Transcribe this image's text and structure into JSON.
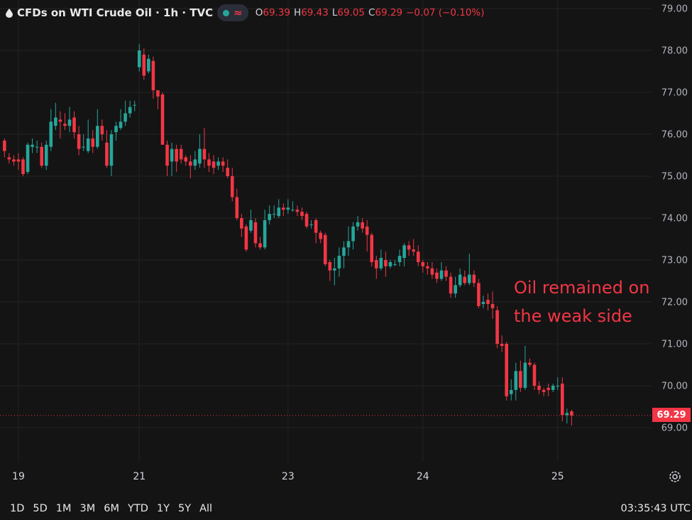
{
  "header": {
    "symbol_title": "CFDs on WTI Crude Oil · 1h · TVC",
    "ohlc": {
      "o_label": "O",
      "o_value": "69.39",
      "h_label": "H",
      "h_value": "69.43",
      "l_label": "L",
      "l_value": "69.05",
      "c_label": "C",
      "c_value": "69.29",
      "change": "−0.07 (−0.10%)"
    }
  },
  "annotation": {
    "line1": "Oil remained on",
    "line2": "the weak side"
  },
  "last_price_label": "69.29",
  "timeframes": [
    "1D",
    "5D",
    "1M",
    "3M",
    "6M",
    "YTD",
    "1Y",
    "5Y",
    "All"
  ],
  "clock": "03:35:43 UTC",
  "colors": {
    "up": "#26a69a",
    "down": "#f23645",
    "background": "#141414",
    "grid": "#232323",
    "text": "#d1d4dc"
  },
  "icons": {
    "logo": "oil-drop-icon",
    "status": "market-status-dot-icon",
    "indicator": "wave-icon",
    "settings": "gear-icon"
  },
  "chart_data": {
    "type": "candlestick",
    "title": "CFDs on WTI Crude Oil · 1h · TVC",
    "ylim": [
      68.3,
      79.1
    ],
    "y_ticks": [
      "79.00",
      "78.00",
      "77.00",
      "76.00",
      "75.00",
      "74.00",
      "73.00",
      "72.00",
      "71.00",
      "70.00",
      "69.00"
    ],
    "x_ticks": [
      {
        "label": "19",
        "bar": 3
      },
      {
        "label": "21",
        "bar": 29
      },
      {
        "label": "23",
        "bar": 61
      },
      {
        "label": "24",
        "bar": 90
      },
      {
        "label": "25",
        "bar": 119
      }
    ],
    "last_price": 69.29,
    "grid": true,
    "candles": [
      [
        75.85,
        75.6,
        75.9,
        75.45
      ],
      [
        75.45,
        75.4,
        75.55,
        75.3
      ],
      [
        75.4,
        75.35,
        75.5,
        75.25
      ],
      [
        75.4,
        75.35,
        75.55,
        75.15
      ],
      [
        75.4,
        75.05,
        75.45,
        75.0
      ],
      [
        75.1,
        75.75,
        75.8,
        75.05
      ],
      [
        75.7,
        75.75,
        75.9,
        75.55
      ],
      [
        75.7,
        75.7,
        75.85,
        75.55
      ],
      [
        75.7,
        75.25,
        75.8,
        75.2
      ],
      [
        75.25,
        75.75,
        75.85,
        75.15
      ],
      [
        75.7,
        76.3,
        76.6,
        75.6
      ],
      [
        76.2,
        76.4,
        76.75,
        76.1
      ],
      [
        76.35,
        76.3,
        76.55,
        75.9
      ],
      [
        76.25,
        76.2,
        76.5,
        76.1
      ],
      [
        76.2,
        76.35,
        76.65,
        76.05
      ],
      [
        76.4,
        76.05,
        76.55,
        75.9
      ],
      [
        76.0,
        75.65,
        76.2,
        75.5
      ],
      [
        75.7,
        75.7,
        76.0,
        75.6
      ],
      [
        75.6,
        75.9,
        76.35,
        75.55
      ],
      [
        75.9,
        75.7,
        76.1,
        75.55
      ],
      [
        75.7,
        76.2,
        76.6,
        75.65
      ],
      [
        76.2,
        76.0,
        76.35,
        75.85
      ],
      [
        75.8,
        75.25,
        76.1,
        75.2
      ],
      [
        75.25,
        76.0,
        76.1,
        75.0
      ],
      [
        76.05,
        76.2,
        76.3,
        75.85
      ],
      [
        76.15,
        76.3,
        76.6,
        76.1
      ],
      [
        76.3,
        76.5,
        76.8,
        76.2
      ],
      [
        76.5,
        76.65,
        76.8,
        76.4
      ],
      [
        76.7,
        76.7,
        76.8,
        76.55
      ],
      [
        77.6,
        78.0,
        78.15,
        77.5
      ],
      [
        77.9,
        77.4,
        78.05,
        77.3
      ],
      [
        77.5,
        77.8,
        77.9,
        77.45
      ],
      [
        77.75,
        77.05,
        77.85,
        76.85
      ],
      [
        77.05,
        76.9,
        77.0,
        76.6
      ],
      [
        76.95,
        75.75,
        77.0,
        75.75
      ],
      [
        75.75,
        75.25,
        75.85,
        75.0
      ],
      [
        75.35,
        75.65,
        75.8,
        75.0
      ],
      [
        75.65,
        75.35,
        75.75,
        75.1
      ],
      [
        75.65,
        75.4,
        75.75,
        75.3
      ],
      [
        75.45,
        75.35,
        75.5,
        75.25
      ],
      [
        75.35,
        75.25,
        75.5,
        74.95
      ],
      [
        75.25,
        75.4,
        75.6,
        75.15
      ],
      [
        75.3,
        75.65,
        76.0,
        75.2
      ],
      [
        75.65,
        75.4,
        76.15,
        75.2
      ],
      [
        75.4,
        75.25,
        75.55,
        75.1
      ],
      [
        75.35,
        75.2,
        75.5,
        75.05
      ],
      [
        75.25,
        75.35,
        75.45,
        75.15
      ],
      [
        75.35,
        75.25,
        75.45,
        75.1
      ],
      [
        75.2,
        75.0,
        75.4,
        74.95
      ],
      [
        75.0,
        74.5,
        75.2,
        74.4
      ],
      [
        74.5,
        74.0,
        74.7,
        73.95
      ],
      [
        74.0,
        73.75,
        74.1,
        73.55
      ],
      [
        73.8,
        73.25,
        73.85,
        73.2
      ],
      [
        73.7,
        73.95,
        74.2,
        73.65
      ],
      [
        73.9,
        73.4,
        74.0,
        73.3
      ],
      [
        73.4,
        73.3,
        73.55,
        73.25
      ],
      [
        73.3,
        73.95,
        74.2,
        73.25
      ],
      [
        73.95,
        74.1,
        74.3,
        73.85
      ],
      [
        74.1,
        74.1,
        74.3,
        74.0
      ],
      [
        74.05,
        74.25,
        74.45,
        74.0
      ],
      [
        74.25,
        74.2,
        74.35,
        74.05
      ],
      [
        74.2,
        74.25,
        74.45,
        74.1
      ],
      [
        74.2,
        74.2,
        74.4,
        74.15
      ],
      [
        74.2,
        74.15,
        74.3,
        74.05
      ],
      [
        74.15,
        74.05,
        74.25,
        73.95
      ],
      [
        74.1,
        73.8,
        74.15,
        73.75
      ],
      [
        73.85,
        73.85,
        73.95,
        73.75
      ],
      [
        73.95,
        73.65,
        74.0,
        73.4
      ],
      [
        73.65,
        73.5,
        73.7,
        73.4
      ],
      [
        73.6,
        72.9,
        73.65,
        72.85
      ],
      [
        72.95,
        72.75,
        73.0,
        72.5
      ],
      [
        72.75,
        72.8,
        73.05,
        72.4
      ],
      [
        72.8,
        73.1,
        73.3,
        72.6
      ],
      [
        73.1,
        73.3,
        73.45,
        72.8
      ],
      [
        73.3,
        73.45,
        73.8,
        73.1
      ],
      [
        73.45,
        73.8,
        73.9,
        73.25
      ],
      [
        73.8,
        73.9,
        74.05,
        73.7
      ],
      [
        73.9,
        73.75,
        74.0,
        73.65
      ],
      [
        73.8,
        73.6,
        73.95,
        73.2
      ],
      [
        73.6,
        72.95,
        73.65,
        72.85
      ],
      [
        73.0,
        72.8,
        73.1,
        72.55
      ],
      [
        72.8,
        73.05,
        73.25,
        72.75
      ],
      [
        73.0,
        72.85,
        73.2,
        72.6
      ],
      [
        72.85,
        72.95,
        73.0,
        72.8
      ],
      [
        72.9,
        72.9,
        73.0,
        72.85
      ],
      [
        72.95,
        73.1,
        73.25,
        72.85
      ],
      [
        73.05,
        73.35,
        73.4,
        72.85
      ],
      [
        73.35,
        73.25,
        73.45,
        73.1
      ],
      [
        73.25,
        73.2,
        73.5,
        73.1
      ],
      [
        73.2,
        72.95,
        73.35,
        72.85
      ],
      [
        72.95,
        72.85,
        73.0,
        72.7
      ],
      [
        72.85,
        72.8,
        72.95,
        72.65
      ],
      [
        72.8,
        72.65,
        72.95,
        72.55
      ],
      [
        72.7,
        72.55,
        72.8,
        72.45
      ],
      [
        72.55,
        72.75,
        72.95,
        72.5
      ],
      [
        72.75,
        72.6,
        72.85,
        72.5
      ],
      [
        72.6,
        72.2,
        72.7,
        72.1
      ],
      [
        72.2,
        72.4,
        72.6,
        72.1
      ],
      [
        72.4,
        72.65,
        72.8,
        72.35
      ],
      [
        72.6,
        72.45,
        72.75,
        72.4
      ],
      [
        72.45,
        72.65,
        73.15,
        72.4
      ],
      [
        72.65,
        72.45,
        72.75,
        72.35
      ],
      [
        72.45,
        71.9,
        72.55,
        71.85
      ],
      [
        71.95,
        72.0,
        72.15,
        71.85
      ],
      [
        72.05,
        71.95,
        72.2,
        71.8
      ],
      [
        71.95,
        71.85,
        72.25,
        71.6
      ],
      [
        71.8,
        71.0,
        71.9,
        70.9
      ],
      [
        71.0,
        70.95,
        71.2,
        70.8
      ],
      [
        71.0,
        69.75,
        71.05,
        69.65
      ],
      [
        69.8,
        69.9,
        70.15,
        69.65
      ],
      [
        69.9,
        70.35,
        70.55,
        69.65
      ],
      [
        70.35,
        69.95,
        70.6,
        69.85
      ],
      [
        69.95,
        70.55,
        70.95,
        69.9
      ],
      [
        70.55,
        70.5,
        70.65,
        70.45
      ],
      [
        70.5,
        70.0,
        70.55,
        69.9
      ],
      [
        70.0,
        69.9,
        70.1,
        69.8
      ],
      [
        69.9,
        69.85,
        69.95,
        69.75
      ],
      [
        69.95,
        69.9,
        70.05,
        69.75
      ],
      [
        69.9,
        70.0,
        70.05,
        69.85
      ],
      [
        70.0,
        70.0,
        70.2,
        69.9
      ],
      [
        70.05,
        69.3,
        70.2,
        69.15
      ],
      [
        69.3,
        69.35,
        69.45,
        69.1
      ],
      [
        69.39,
        69.29,
        69.43,
        69.05
      ]
    ]
  }
}
